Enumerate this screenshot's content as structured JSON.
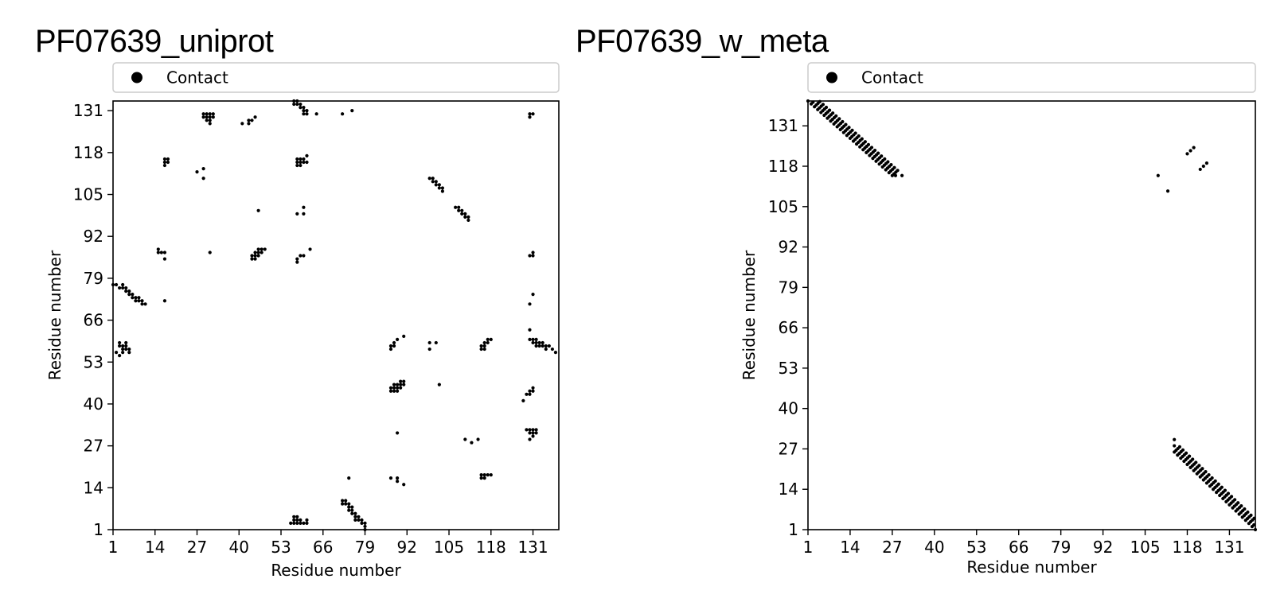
{
  "chart_data": [
    {
      "type": "scatter",
      "title": "PF07639_uniprot",
      "xlabel": "Residue number",
      "ylabel": "Residue number",
      "xlim": [
        1,
        139
      ],
      "ylim": [
        1,
        134
      ],
      "xticks": [
        1,
        14,
        27,
        40,
        53,
        66,
        79,
        92,
        105,
        118,
        131
      ],
      "yticks": [
        1,
        14,
        27,
        40,
        53,
        66,
        79,
        92,
        105,
        118,
        131
      ],
      "legend": {
        "label": "Contact",
        "placement": "top"
      },
      "marker_color": "#000000",
      "series": [
        {
          "name": "Contact",
          "points": [
            [
              1,
              77
            ],
            [
              2,
              77
            ],
            [
              3,
              76
            ],
            [
              4,
              77
            ],
            [
              4,
              76
            ],
            [
              5,
              76
            ],
            [
              5,
              75
            ],
            [
              6,
              75
            ],
            [
              6,
              74
            ],
            [
              7,
              74
            ],
            [
              7,
              73
            ],
            [
              8,
              73
            ],
            [
              8,
              72
            ],
            [
              9,
              73
            ],
            [
              9,
              72
            ],
            [
              10,
              71
            ],
            [
              10,
              72
            ],
            [
              11,
              71
            ],
            [
              3,
              59
            ],
            [
              3,
              58
            ],
            [
              4,
              58
            ],
            [
              4,
              57
            ],
            [
              4,
              56
            ],
            [
              5,
              59
            ],
            [
              5,
              58
            ],
            [
              5,
              57
            ],
            [
              6,
              57
            ],
            [
              6,
              56
            ],
            [
              2,
              56
            ],
            [
              3,
              55
            ],
            [
              15,
              88
            ],
            [
              15,
              87
            ],
            [
              16,
              87
            ],
            [
              17,
              87
            ],
            [
              17,
              85
            ],
            [
              17,
              72
            ],
            [
              17,
              116
            ],
            [
              18,
              116
            ],
            [
              17,
              115
            ],
            [
              18,
              115
            ],
            [
              17,
              114
            ],
            [
              27,
              112
            ],
            [
              29,
              110
            ],
            [
              29,
              113
            ],
            [
              29,
              130
            ],
            [
              30,
              130
            ],
            [
              31,
              130
            ],
            [
              32,
              130
            ],
            [
              29,
              129
            ],
            [
              30,
              129
            ],
            [
              31,
              129
            ],
            [
              32,
              129
            ],
            [
              30,
              128
            ],
            [
              31,
              128
            ],
            [
              31,
              127
            ],
            [
              31,
              87
            ],
            [
              41,
              127
            ],
            [
              43,
              128
            ],
            [
              43,
              127
            ],
            [
              44,
              128
            ],
            [
              45,
              129
            ],
            [
              46,
              100
            ],
            [
              44,
              85
            ],
            [
              44,
              86
            ],
            [
              45,
              85
            ],
            [
              45,
              86
            ],
            [
              45,
              87
            ],
            [
              46,
              86
            ],
            [
              46,
              87
            ],
            [
              46,
              88
            ],
            [
              47,
              87
            ],
            [
              47,
              88
            ],
            [
              48,
              88
            ],
            [
              57,
              134
            ],
            [
              58,
              134
            ],
            [
              57,
              133
            ],
            [
              58,
              133
            ],
            [
              59,
              133
            ],
            [
              59,
              132
            ],
            [
              60,
              132
            ],
            [
              60,
              131
            ],
            [
              61,
              131
            ],
            [
              60,
              130
            ],
            [
              61,
              130
            ],
            [
              64,
              130
            ],
            [
              72,
              130
            ],
            [
              75,
              131
            ],
            [
              58,
              116
            ],
            [
              59,
              116
            ],
            [
              60,
              116
            ],
            [
              61,
              117
            ],
            [
              58,
              115
            ],
            [
              59,
              115
            ],
            [
              60,
              115
            ],
            [
              61,
              115
            ],
            [
              58,
              114
            ],
            [
              59,
              114
            ],
            [
              58,
              99
            ],
            [
              60,
              99
            ],
            [
              60,
              101
            ],
            [
              58,
              84
            ],
            [
              59,
              86
            ],
            [
              60,
              86
            ],
            [
              62,
              88
            ],
            [
              58,
              85
            ],
            [
              56,
              3
            ],
            [
              57,
              3
            ],
            [
              57,
              4
            ],
            [
              58,
              3
            ],
            [
              58,
              4
            ],
            [
              58,
              5
            ],
            [
              59,
              4
            ],
            [
              59,
              3
            ],
            [
              60,
              3
            ],
            [
              61,
              3
            ],
            [
              61,
              4
            ],
            [
              57,
              5
            ],
            [
              72,
              10
            ],
            [
              72,
              9
            ],
            [
              73,
              10
            ],
            [
              73,
              9
            ],
            [
              74,
              9
            ],
            [
              74,
              8
            ],
            [
              74,
              7
            ],
            [
              75,
              7
            ],
            [
              75,
              6
            ],
            [
              75,
              8
            ],
            [
              76,
              6
            ],
            [
              76,
              5
            ],
            [
              76,
              4
            ],
            [
              77,
              5
            ],
            [
              77,
              4
            ],
            [
              78,
              3
            ],
            [
              78,
              4
            ],
            [
              79,
              3
            ],
            [
              79,
              2
            ],
            [
              79,
              1
            ],
            [
              74,
              17
            ],
            [
              87,
              58
            ],
            [
              88,
              58
            ],
            [
              87,
              57
            ],
            [
              88,
              59
            ],
            [
              89,
              60
            ],
            [
              91,
              61
            ],
            [
              87,
              44
            ],
            [
              87,
              45
            ],
            [
              88,
              44
            ],
            [
              88,
              45
            ],
            [
              88,
              46
            ],
            [
              89,
              44
            ],
            [
              89,
              45
            ],
            [
              89,
              46
            ],
            [
              90,
              46
            ],
            [
              90,
              47
            ],
            [
              91,
              47
            ],
            [
              91,
              46
            ],
            [
              90,
              45
            ],
            [
              89,
              31
            ],
            [
              87,
              17
            ],
            [
              89,
              17
            ],
            [
              89,
              16
            ],
            [
              91,
              15
            ],
            [
              99,
              110
            ],
            [
              100,
              110
            ],
            [
              101,
              109
            ],
            [
              100,
              109
            ],
            [
              101,
              108
            ],
            [
              102,
              108
            ],
            [
              102,
              107
            ],
            [
              103,
              107
            ],
            [
              103,
              106
            ],
            [
              107,
              101
            ],
            [
              108,
              101
            ],
            [
              108,
              100
            ],
            [
              109,
              100
            ],
            [
              109,
              99
            ],
            [
              110,
              99
            ],
            [
              110,
              98
            ],
            [
              111,
              98
            ],
            [
              111,
              97
            ],
            [
              99,
              59
            ],
            [
              101,
              59
            ],
            [
              99,
              57
            ],
            [
              102,
              46
            ],
            [
              110,
              29
            ],
            [
              112,
              28
            ],
            [
              114,
              29
            ],
            [
              115,
              58
            ],
            [
              115,
              57
            ],
            [
              116,
              58
            ],
            [
              116,
              59
            ],
            [
              117,
              59
            ],
            [
              117,
              60
            ],
            [
              118,
              60
            ],
            [
              116,
              57
            ],
            [
              115,
              17
            ],
            [
              115,
              18
            ],
            [
              116,
              18
            ],
            [
              117,
              18
            ],
            [
              118,
              18
            ],
            [
              116,
              17
            ],
            [
              130,
              130
            ],
            [
              131,
              130
            ],
            [
              130,
              129
            ],
            [
              130,
              86
            ],
            [
              131,
              86
            ],
            [
              131,
              87
            ],
            [
              131,
              74
            ],
            [
              130,
              71
            ],
            [
              130,
              63
            ],
            [
              130,
              60
            ],
            [
              131,
              60
            ],
            [
              132,
              60
            ],
            [
              131,
              59
            ],
            [
              132,
              59
            ],
            [
              133,
              59
            ],
            [
              134,
              59
            ],
            [
              134,
              58
            ],
            [
              135,
              58
            ],
            [
              135,
              57
            ],
            [
              136,
              58
            ],
            [
              137,
              57
            ],
            [
              133,
              58
            ],
            [
              132,
              58
            ],
            [
              138,
              56
            ],
            [
              129,
              43
            ],
            [
              130,
              44
            ],
            [
              130,
              43
            ],
            [
              131,
              44
            ],
            [
              131,
              45
            ],
            [
              128,
              41
            ],
            [
              129,
              32
            ],
            [
              130,
              32
            ],
            [
              131,
              32
            ],
            [
              130,
              31
            ],
            [
              131,
              31
            ],
            [
              132,
              31
            ],
            [
              132,
              32
            ],
            [
              131,
              30
            ],
            [
              130,
              29
            ]
          ]
        }
      ]
    },
    {
      "type": "scatter",
      "title": "PF07639_w_meta",
      "xlabel": "Residue number",
      "ylabel": "Residue number",
      "xlim": [
        1,
        139
      ],
      "ylim": [
        1,
        139
      ],
      "xticks": [
        1,
        14,
        27,
        40,
        53,
        66,
        79,
        92,
        105,
        118,
        131
      ],
      "yticks": [
        1,
        14,
        27,
        40,
        53,
        66,
        79,
        92,
        105,
        118,
        131
      ],
      "legend": {
        "label": "Contact",
        "placement": "top"
      },
      "marker_color": "#000000",
      "bands": [
        {
          "name": "Contact",
          "from": [
            1,
            139
          ],
          "to": [
            27,
            115
          ],
          "width": 4
        },
        {
          "name": "Contact",
          "from": [
            114,
            26
          ],
          "to": [
            139,
            1
          ],
          "width": 4
        }
      ],
      "series": [
        {
          "name": "Contact",
          "points": [
            [
              28,
              115
            ],
            [
              30,
              115
            ],
            [
              109,
              115
            ],
            [
              112,
              110
            ],
            [
              118,
              122
            ],
            [
              119,
              123
            ],
            [
              120,
              124
            ],
            [
              122,
              117
            ],
            [
              123,
              118
            ],
            [
              124,
              119
            ],
            [
              114,
              28
            ],
            [
              114,
              30
            ]
          ]
        }
      ]
    }
  ]
}
